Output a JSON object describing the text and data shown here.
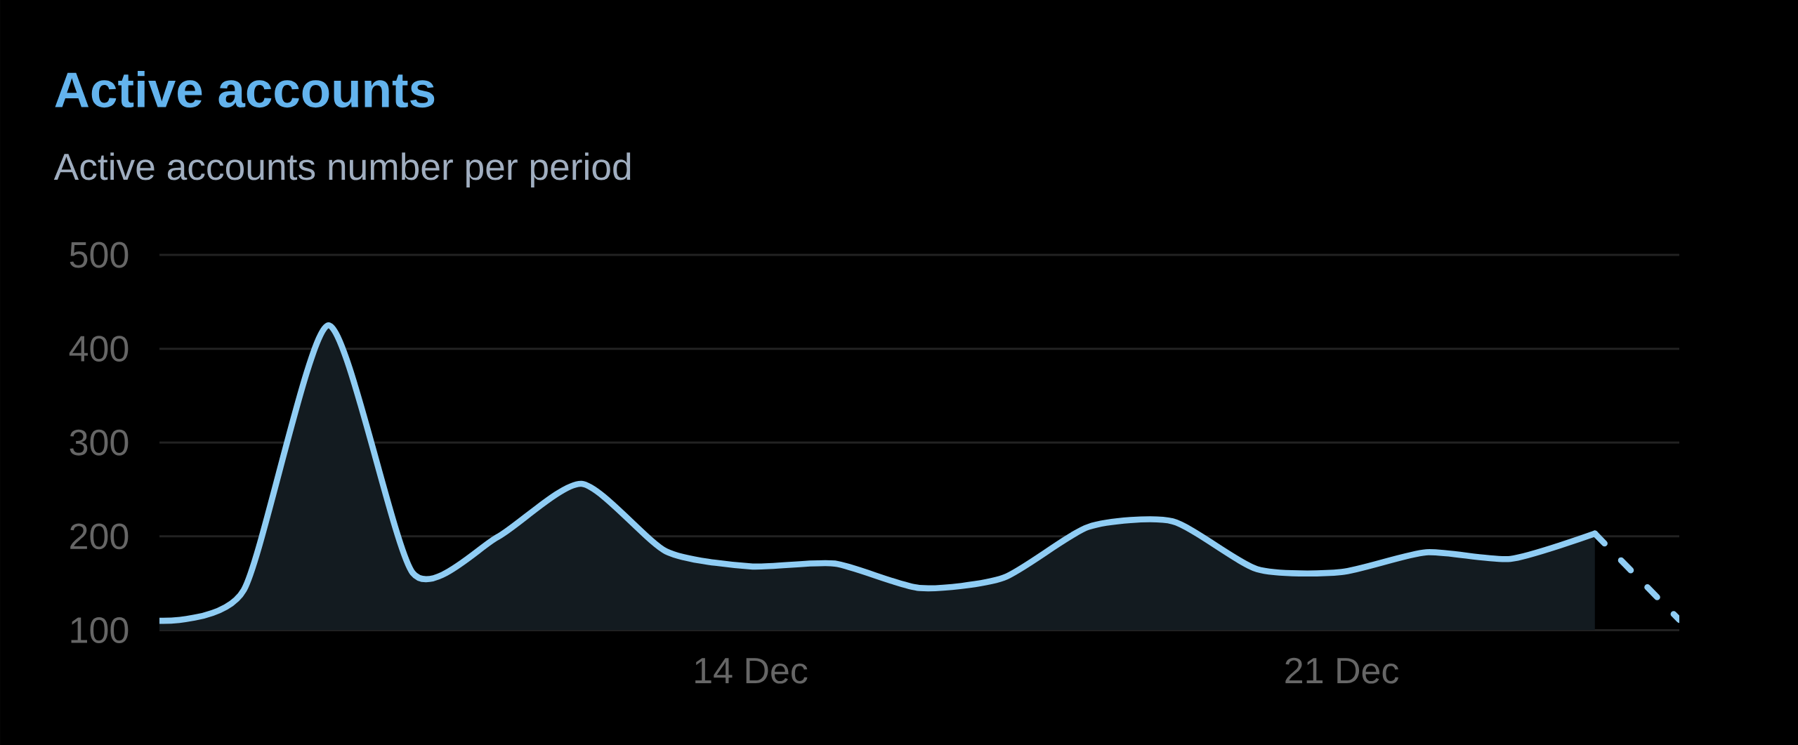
{
  "chart_data": {
    "type": "area",
    "title": "Active accounts",
    "subtitle": "Active accounts number per period",
    "series": [
      {
        "color": "#90cdf4",
        "x": [
          "--12-07",
          "--12-08",
          "--12-09",
          "--12-10",
          "--12-11",
          "--12-12",
          "--12-13",
          "--12-14",
          "--12-15",
          "--12-16",
          "--12-17",
          "--12-18",
          "--12-19",
          "--12-20",
          "--12-21",
          "--12-22",
          "--12-23",
          "--12-24"
        ],
        "values": [
          110,
          143,
          425,
          161,
          199,
          256,
          184,
          168,
          171,
          145,
          156,
          210,
          216,
          165,
          162,
          183,
          176,
          203
        ]
      },
      {
        "type": "line",
        "line_style": "dashed",
        "color": "#90cdf4",
        "x": [
          "--12-24",
          "--12-25"
        ],
        "values": [
          203,
          111
        ]
      }
    ],
    "xlim": [
      "--12-07",
      "--12-25"
    ],
    "xticks": [
      {
        "value": "--12-14",
        "label": "14 Dec"
      },
      {
        "value": "--12-21",
        "label": "21 Dec"
      }
    ],
    "ylim": [
      100,
      500
    ],
    "yticks": [
      100,
      200,
      300,
      400,
      500
    ],
    "grid": "y"
  }
}
